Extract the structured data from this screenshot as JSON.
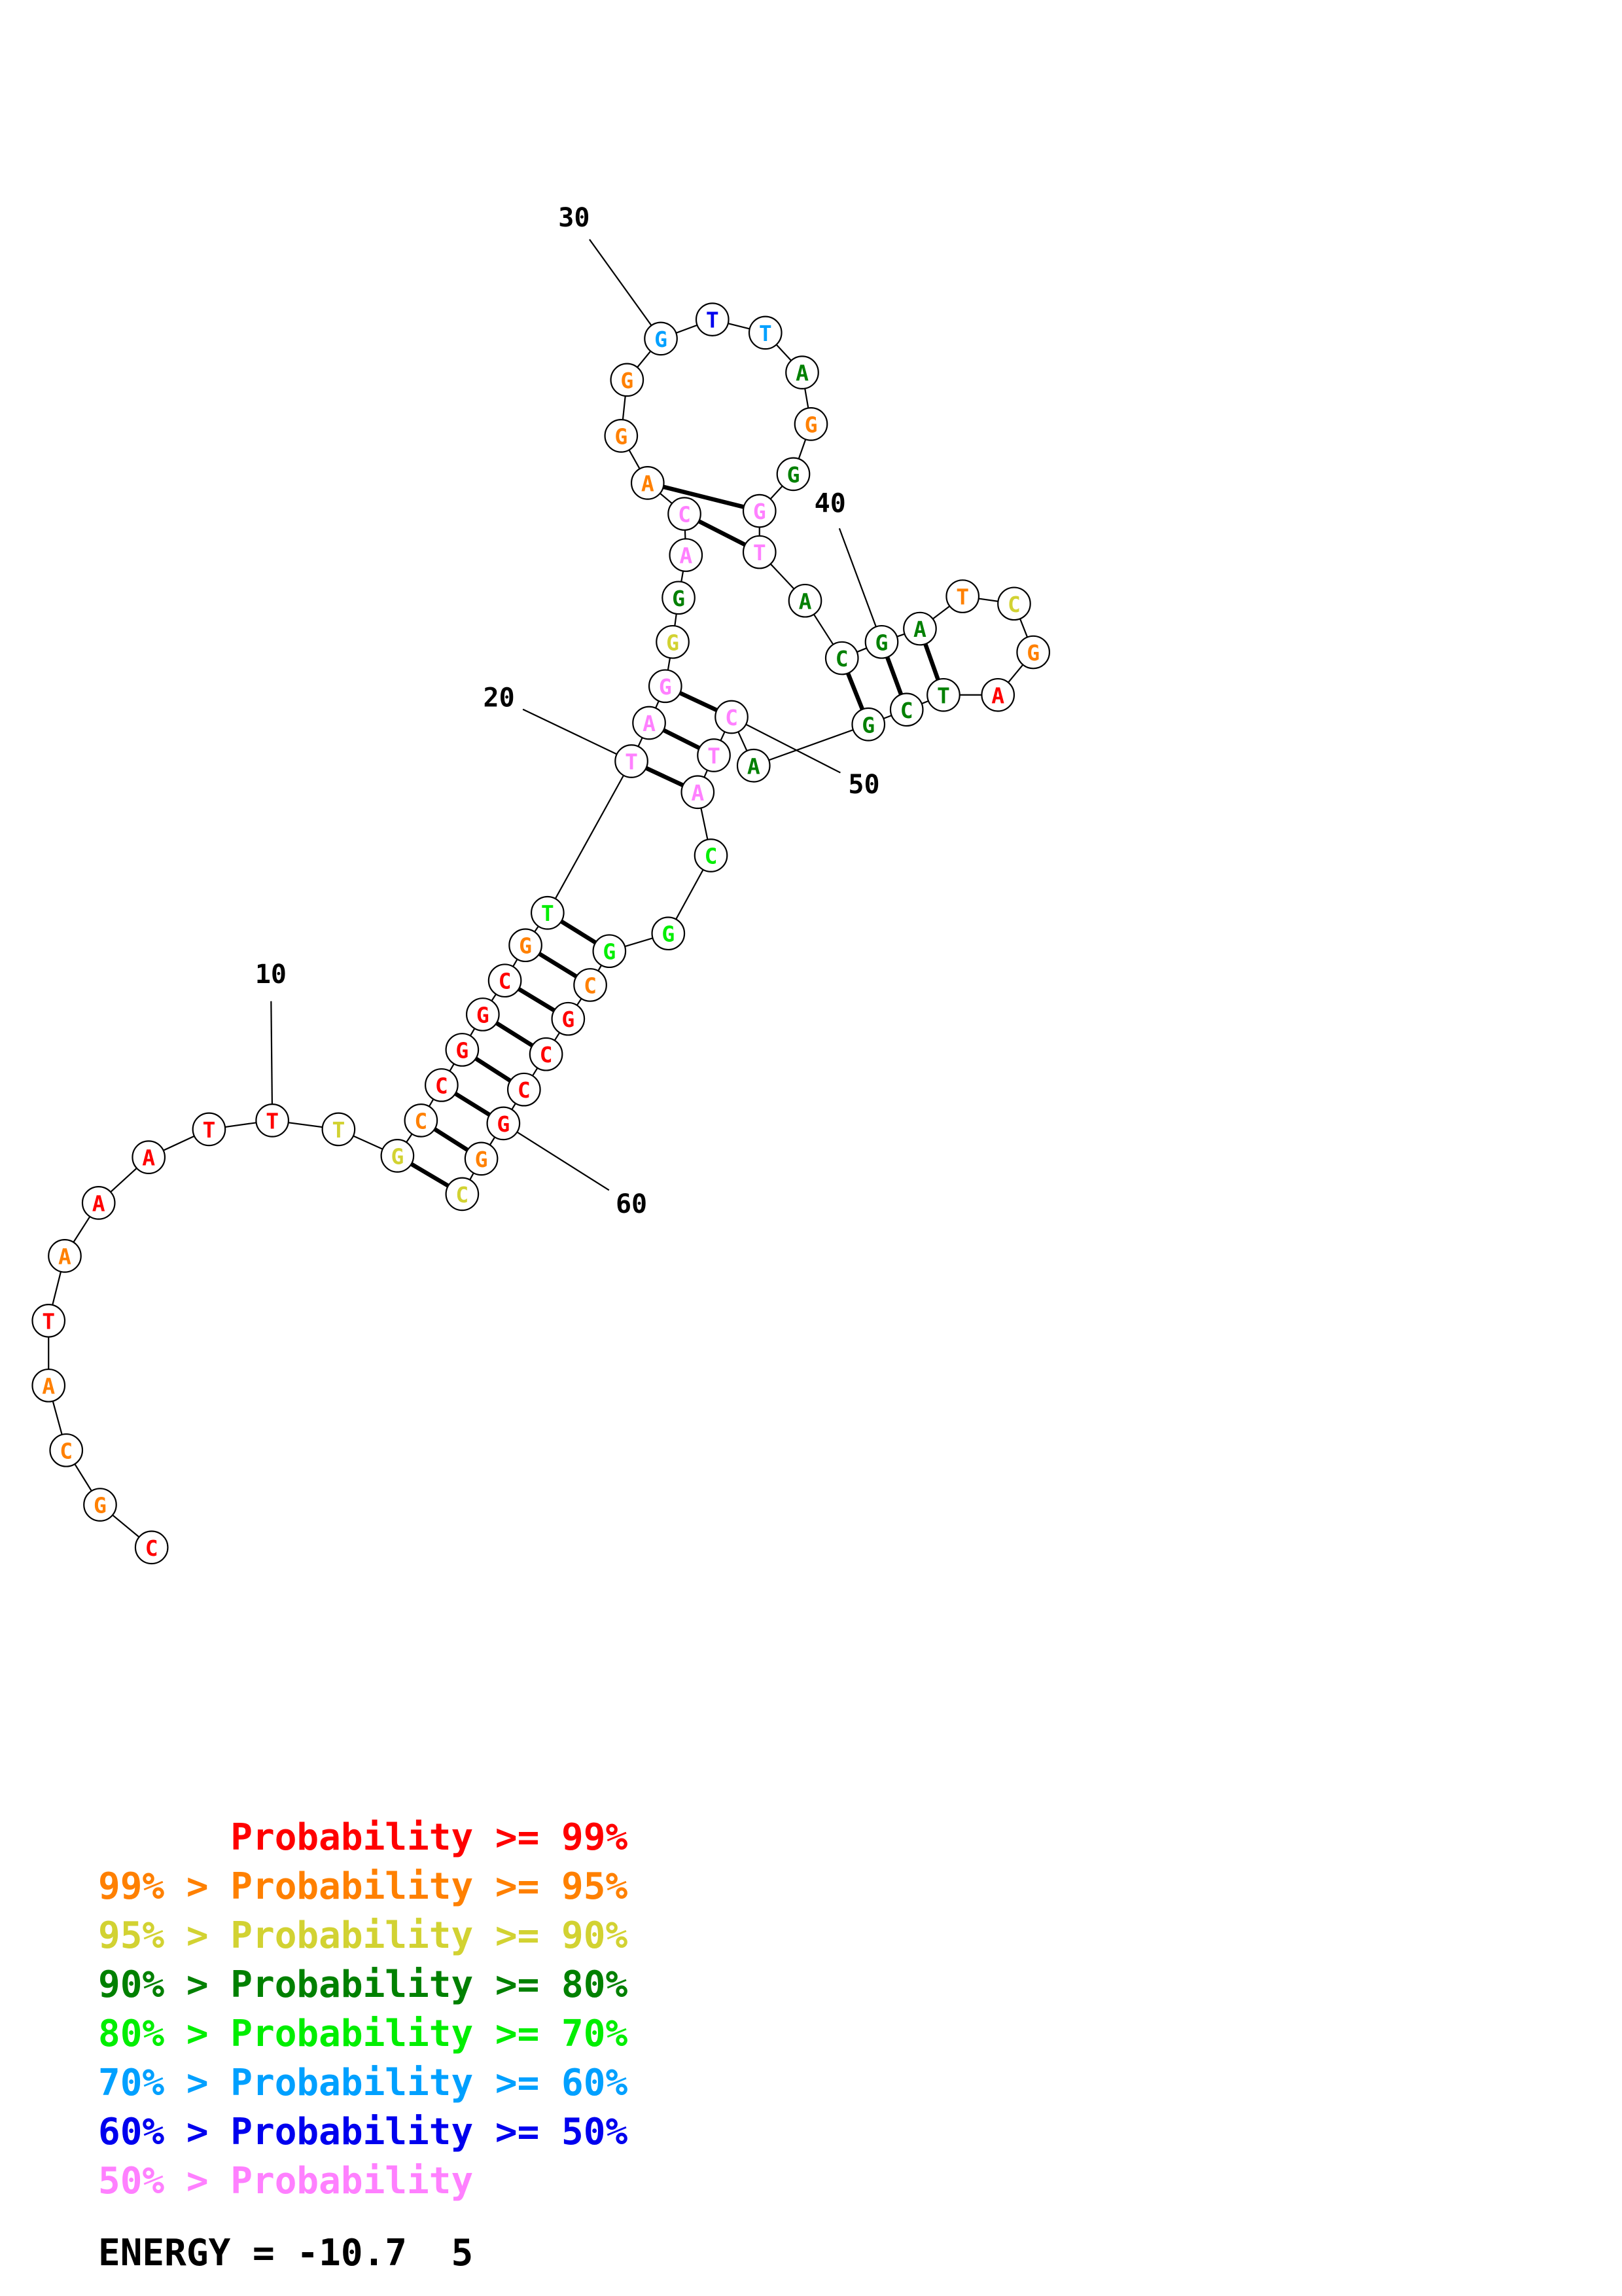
{
  "colors": {
    "p99": "#ff0000",
    "p95": "#ff8000",
    "p90": "#d2d232",
    "p80": "#008000",
    "p70": "#00ee00",
    "p60": "#00a0ff",
    "p50": "#0000ee",
    "plow": "#ff80ff"
  },
  "structure": {
    "nucleotides": [
      {
        "n": 1,
        "base": "C",
        "c": "p99"
      },
      {
        "n": 2,
        "base": "G",
        "c": "p95"
      },
      {
        "n": 3,
        "base": "C",
        "c": "p95"
      },
      {
        "n": 4,
        "base": "A",
        "c": "p95"
      },
      {
        "n": 5,
        "base": "T",
        "c": "p99"
      },
      {
        "n": 6,
        "base": "A",
        "c": "p95"
      },
      {
        "n": 7,
        "base": "A",
        "c": "p99"
      },
      {
        "n": 8,
        "base": "A",
        "c": "p99"
      },
      {
        "n": 9,
        "base": "T",
        "c": "p99"
      },
      {
        "n": 10,
        "base": "T",
        "c": "p99"
      },
      {
        "n": 11,
        "base": "T",
        "c": "p90"
      },
      {
        "n": 12,
        "base": "G",
        "c": "p90"
      },
      {
        "n": 13,
        "base": "C",
        "c": "p95"
      },
      {
        "n": 14,
        "base": "C",
        "c": "p99"
      },
      {
        "n": 15,
        "base": "G",
        "c": "p99"
      },
      {
        "n": 16,
        "base": "G",
        "c": "p99"
      },
      {
        "n": 17,
        "base": "C",
        "c": "p99"
      },
      {
        "n": 18,
        "base": "G",
        "c": "p95"
      },
      {
        "n": 19,
        "base": "T",
        "c": "p70"
      },
      {
        "n": 20,
        "base": "T",
        "c": "plow"
      },
      {
        "n": 21,
        "base": "A",
        "c": "plow"
      },
      {
        "n": 22,
        "base": "G",
        "c": "plow"
      },
      {
        "n": 23,
        "base": "G",
        "c": "p90"
      },
      {
        "n": 24,
        "base": "G",
        "c": "p80"
      },
      {
        "n": 25,
        "base": "A",
        "c": "plow"
      },
      {
        "n": 26,
        "base": "C",
        "c": "plow"
      },
      {
        "n": 27,
        "base": "A",
        "c": "p95"
      },
      {
        "n": 28,
        "base": "G",
        "c": "p95"
      },
      {
        "n": 29,
        "base": "G",
        "c": "p95"
      },
      {
        "n": 30,
        "base": "G",
        "c": "p60"
      },
      {
        "n": 31,
        "base": "T",
        "c": "p50"
      },
      {
        "n": 32,
        "base": "T",
        "c": "p60"
      },
      {
        "n": 33,
        "base": "A",
        "c": "p80"
      },
      {
        "n": 34,
        "base": "G",
        "c": "p95"
      },
      {
        "n": 35,
        "base": "G",
        "c": "p80"
      },
      {
        "n": 36,
        "base": "G",
        "c": "plow"
      },
      {
        "n": 37,
        "base": "T",
        "c": "plow"
      },
      {
        "n": 38,
        "base": "A",
        "c": "p80"
      },
      {
        "n": 39,
        "base": "C",
        "c": "p80"
      },
      {
        "n": 40,
        "base": "G",
        "c": "p80"
      },
      {
        "n": 41,
        "base": "A",
        "c": "p80"
      },
      {
        "n": 42,
        "base": "T",
        "c": "p95"
      },
      {
        "n": 43,
        "base": "C",
        "c": "p90"
      },
      {
        "n": 44,
        "base": "G",
        "c": "p95"
      },
      {
        "n": 45,
        "base": "A",
        "c": "p99"
      },
      {
        "n": 46,
        "base": "T",
        "c": "p80"
      },
      {
        "n": 47,
        "base": "C",
        "c": "p80"
      },
      {
        "n": 48,
        "base": "G",
        "c": "p80"
      },
      {
        "n": 49,
        "base": "A",
        "c": "p80"
      },
      {
        "n": 50,
        "base": "C",
        "c": "plow"
      },
      {
        "n": 51,
        "base": "T",
        "c": "plow"
      },
      {
        "n": 52,
        "base": "A",
        "c": "plow"
      },
      {
        "n": 53,
        "base": "C",
        "c": "p70"
      },
      {
        "n": 54,
        "base": "G",
        "c": "p70"
      },
      {
        "n": 55,
        "base": "G",
        "c": "p70"
      },
      {
        "n": 56,
        "base": "C",
        "c": "p95"
      },
      {
        "n": 57,
        "base": "G",
        "c": "p99"
      },
      {
        "n": 58,
        "base": "C",
        "c": "p99"
      },
      {
        "n": 59,
        "base": "C",
        "c": "p99"
      },
      {
        "n": 60,
        "base": "G",
        "c": "p99"
      },
      {
        "n": 61,
        "base": "G",
        "c": "p95"
      },
      {
        "n": 62,
        "base": "C",
        "c": "p90"
      }
    ],
    "pairs": [
      [
        12,
        62
      ],
      [
        13,
        61
      ],
      [
        14,
        60
      ],
      [
        15,
        59
      ],
      [
        16,
        58
      ],
      [
        17,
        57
      ],
      [
        18,
        56
      ],
      [
        19,
        55
      ],
      [
        20,
        52
      ],
      [
        21,
        51
      ],
      [
        22,
        50
      ],
      [
        26,
        37
      ],
      [
        27,
        36
      ],
      [
        39,
        48
      ],
      [
        40,
        47
      ],
      [
        41,
        46
      ]
    ],
    "position_labels": [
      "10",
      "20",
      "30",
      "40",
      "50",
      "60"
    ]
  },
  "legend": {
    "lines": [
      {
        "text": "      Probability >= 99%",
        "c": "p99"
      },
      {
        "text": "99% > Probability >= 95%",
        "c": "p95"
      },
      {
        "text": "95% > Probability >= 90%",
        "c": "p90"
      },
      {
        "text": "90% > Probability >= 80%",
        "c": "p80"
      },
      {
        "text": "80% > Probability >= 70%",
        "c": "p70"
      },
      {
        "text": "70% > Probability >= 60%",
        "c": "p60"
      },
      {
        "text": "60% > Probability >= 50%",
        "c": "p50"
      },
      {
        "text": "50% > Probability",
        "c": "plow"
      }
    ],
    "energy": "ENERGY = -10.7  5"
  }
}
